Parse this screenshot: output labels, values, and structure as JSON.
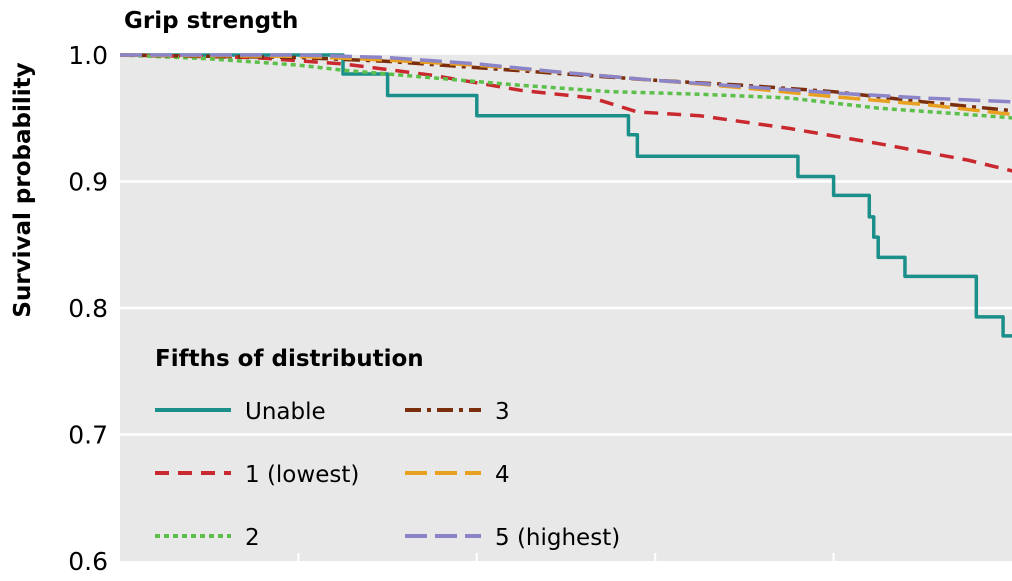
{
  "chart_data": {
    "type": "line",
    "title": "Grip strength",
    "ylabel": "Survival probability",
    "xlabel": "",
    "ylim": [
      0.6,
      1.0
    ],
    "xlim": [
      0,
      10
    ],
    "yticks": [
      "0.6",
      "0.7",
      "0.8",
      "0.9",
      "1.0"
    ],
    "xticks": [
      2,
      4,
      6,
      8
    ],
    "grid": true,
    "legend": {
      "title": "Fifths of distribution",
      "placement": "bottom-left"
    },
    "series": [
      {
        "name": "Unable",
        "color": "#1b8f8a",
        "dash": "solid",
        "step": true,
        "x": [
          0,
          2,
          2.5,
          3,
          4,
          5.7,
          5.8,
          7.6,
          8.0,
          8.4,
          8.45,
          8.5,
          8.8,
          9.6,
          9.9,
          10.8
        ],
        "y": [
          1.0,
          1.0,
          0.985,
          0.968,
          0.952,
          0.937,
          0.92,
          0.904,
          0.889,
          0.872,
          0.856,
          0.84,
          0.825,
          0.793,
          0.778,
          0.778
        ]
      },
      {
        "name": "1 (lowest)",
        "color": "#c8282e",
        "dash": "dashed",
        "step": false,
        "x": [
          0,
          1.5,
          2.5,
          3.5,
          4.5,
          5.3,
          5.8,
          6.5,
          7.5,
          8.5,
          9.5,
          10.2,
          10.8
        ],
        "y": [
          1.0,
          0.998,
          0.993,
          0.984,
          0.972,
          0.966,
          0.955,
          0.952,
          0.942,
          0.93,
          0.917,
          0.905,
          0.902
        ]
      },
      {
        "name": "2",
        "color": "#5cbf4a",
        "dash": "dotted",
        "step": false,
        "x": [
          0,
          1,
          2,
          2.5,
          3.5,
          4.5,
          5.5,
          6.5,
          7.5,
          8.5,
          9.5,
          10.8
        ],
        "y": [
          1.0,
          0.997,
          0.992,
          0.988,
          0.982,
          0.976,
          0.971,
          0.969,
          0.966,
          0.958,
          0.953,
          0.946
        ]
      },
      {
        "name": "3",
        "color": "#7a2e0e",
        "dash": "dashdot",
        "step": false,
        "x": [
          0,
          2,
          3,
          4,
          5,
          6,
          7,
          8,
          9,
          10,
          10.8
        ],
        "y": [
          1.0,
          0.998,
          0.995,
          0.99,
          0.985,
          0.98,
          0.976,
          0.971,
          0.963,
          0.956,
          0.954
        ]
      },
      {
        "name": "4",
        "color": "#e8a020",
        "dash": "longdash",
        "step": false,
        "x": [
          0,
          2,
          3,
          4,
          5,
          6,
          7,
          8,
          9,
          10,
          10.8
        ],
        "y": [
          1.0,
          0.999,
          0.996,
          0.992,
          0.986,
          0.98,
          0.974,
          0.967,
          0.961,
          0.953,
          0.944
        ]
      },
      {
        "name": "5 (highest)",
        "color": "#8c84c8",
        "dash": "longdash",
        "step": false,
        "x": [
          0,
          2,
          3,
          4,
          5,
          6,
          7,
          8,
          9,
          10,
          10.8
        ],
        "y": [
          1.0,
          1.0,
          0.998,
          0.993,
          0.986,
          0.98,
          0.975,
          0.97,
          0.966,
          0.963,
          0.958
        ]
      }
    ]
  }
}
